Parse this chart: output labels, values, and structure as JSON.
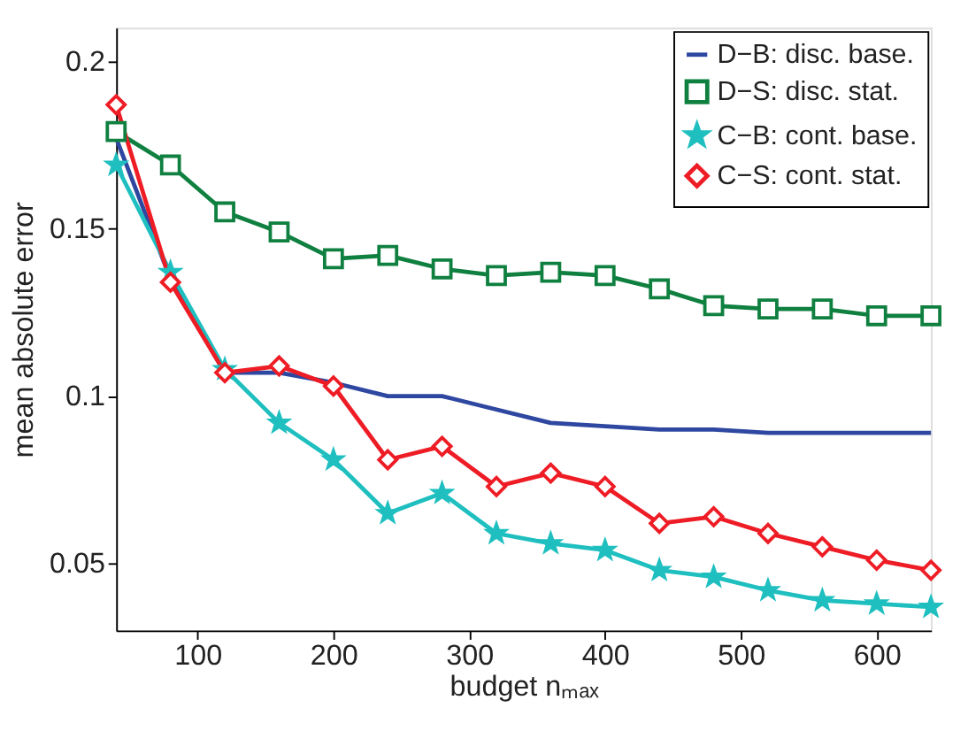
{
  "chart_data": {
    "type": "line",
    "xlabel": "budget nₘₐₓ",
    "ylabel": "mean absolute error",
    "x": [
      40,
      80,
      120,
      160,
      200,
      240,
      280,
      320,
      360,
      400,
      440,
      480,
      520,
      560,
      600,
      640
    ],
    "series": [
      {
        "name": "D−B: disc. base.",
        "color": "#2e47a0",
        "marker": "none",
        "values": [
          0.177,
          0.135,
          0.107,
          0.107,
          0.104,
          0.1,
          0.1,
          0.096,
          0.092,
          0.091,
          0.09,
          0.09,
          0.089,
          0.089,
          0.089,
          0.089
        ]
      },
      {
        "name": "D−S: disc. stat.",
        "color": "#0f8040",
        "marker": "square",
        "values": [
          0.179,
          0.169,
          0.155,
          0.149,
          0.141,
          0.142,
          0.138,
          0.136,
          0.137,
          0.136,
          0.132,
          0.127,
          0.126,
          0.126,
          0.124,
          0.124
        ]
      },
      {
        "name": "C−B: cont. base.",
        "color": "#1fbfc0",
        "marker": "star",
        "values": [
          0.169,
          0.137,
          0.108,
          0.092,
          0.081,
          0.065,
          0.071,
          0.059,
          0.056,
          0.054,
          0.048,
          0.046,
          0.042,
          0.039,
          0.038,
          0.037
        ]
      },
      {
        "name": "C−S: cont. stat.",
        "color": "#ee1c25",
        "marker": "diamond",
        "values": [
          0.187,
          0.134,
          0.107,
          0.109,
          0.103,
          0.081,
          0.085,
          0.073,
          0.077,
          0.073,
          0.062,
          0.064,
          0.059,
          0.055,
          0.051,
          0.048
        ]
      }
    ],
    "xlim": [
      40,
      640
    ],
    "xticks": [
      100,
      200,
      300,
      400,
      500,
      600
    ],
    "ylim": [
      0.03,
      0.21
    ],
    "yticks": [
      0.05,
      0.1,
      0.15,
      0.2
    ],
    "grid": false,
    "legend": "top right",
    "line_style": "solid"
  }
}
